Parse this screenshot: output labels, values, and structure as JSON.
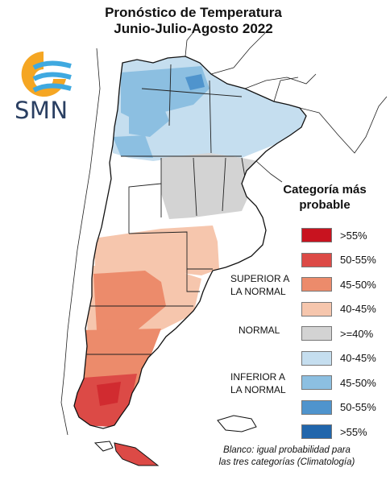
{
  "title": {
    "line1": "Pronóstico de Temperatura",
    "line2": "Junio-Julio-Agosto 2022"
  },
  "logo": {
    "text": "SMN",
    "icon": "smn-sun-waves-logo",
    "colors": {
      "sun": "#f5a623",
      "waves": "#3fa9e0"
    }
  },
  "legend": {
    "title_line1": "Categoría más",
    "title_line2": "probable",
    "items": [
      {
        "label": ">55%",
        "color": "#c8131f",
        "group": "superior"
      },
      {
        "label": "50-55%",
        "color": "#dc4a46",
        "group": "superior"
      },
      {
        "label": "45-50%",
        "color": "#ec8b6b",
        "group": "superior"
      },
      {
        "label": "40-45%",
        "color": "#f6c6ad",
        "group": "superior"
      },
      {
        "label": ">=40%",
        "color": "#d3d3d3",
        "group": "normal"
      },
      {
        "label": "40-45%",
        "color": "#c5deef",
        "group": "inferior"
      },
      {
        "label": "45-50%",
        "color": "#8cbfe1",
        "group": "inferior"
      },
      {
        "label": "50-55%",
        "color": "#4f94cd",
        "group": "inferior"
      },
      {
        "label": ">55%",
        "color": "#2166ac",
        "group": "inferior"
      }
    ],
    "groups": {
      "superior": {
        "line1": "SUPERIOR A",
        "line2": "LA NORMAL"
      },
      "normal": {
        "line1": "NORMAL"
      },
      "inferior": {
        "line1": "INFERIOR A",
        "line2": "LA NORMAL"
      }
    }
  },
  "footnote": {
    "line1": "Blanco: igual probabilidad para",
    "line2": "las tres categorías (Climatología)"
  }
}
